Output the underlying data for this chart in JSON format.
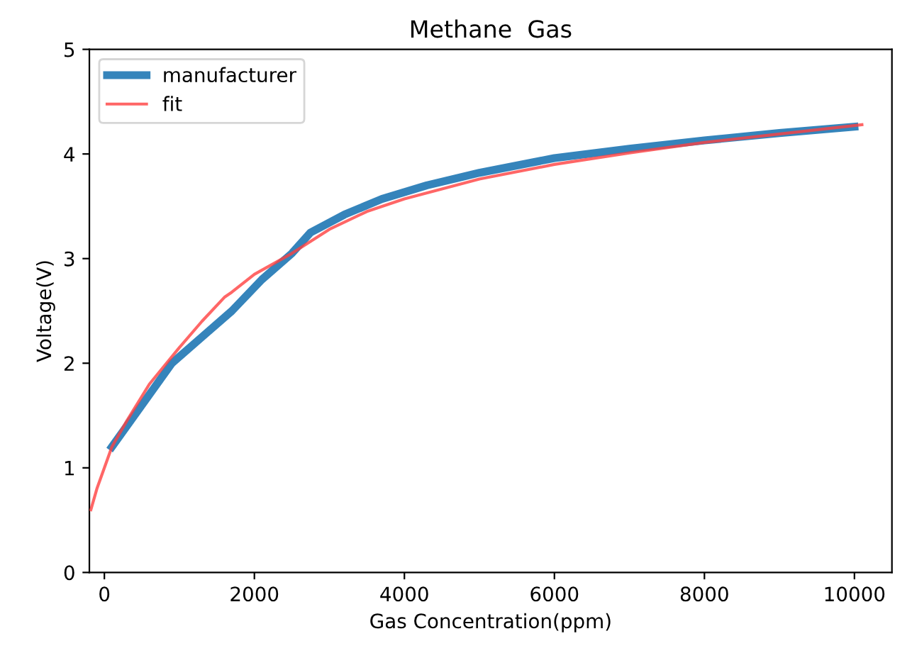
{
  "chart_data": {
    "type": "line",
    "title": "Methane  Gas",
    "xlabel": "Gas Concentration(ppm)",
    "ylabel": "Voltage(V)",
    "xlim": [
      -200,
      10500
    ],
    "ylim": [
      0,
      5
    ],
    "xticks": [
      0,
      2000,
      4000,
      6000,
      8000,
      10000
    ],
    "yticks": [
      0,
      1,
      2,
      3,
      4,
      5
    ],
    "grid": false,
    "legend": "top left",
    "line_style": "solid",
    "marker": "none",
    "series": [
      {
        "name": "manufacturer",
        "color": "#1f77b4",
        "x": [
          100,
          300,
          600,
          900,
          1300,
          1700,
          2100,
          2500,
          2750,
          3200,
          3700,
          4300,
          5000,
          6000,
          7000,
          8000,
          9000,
          10000
        ],
        "values": [
          1.2,
          1.4,
          1.7,
          2.0,
          2.25,
          2.5,
          2.8,
          3.05,
          3.25,
          3.42,
          3.57,
          3.7,
          3.82,
          3.96,
          4.05,
          4.13,
          4.2,
          4.26
        ]
      },
      {
        "name": "fit",
        "color": "#ff4040",
        "x": [
          -180,
          -100,
          0,
          100,
          300,
          600,
          1000,
          1300,
          1600,
          1700,
          2000,
          2500,
          3000,
          3500,
          4000,
          5000,
          6000,
          7000,
          8000,
          10100
        ],
        "values": [
          0.6,
          0.8,
          1.0,
          1.2,
          1.45,
          1.8,
          2.15,
          2.4,
          2.63,
          2.68,
          2.85,
          3.05,
          3.28,
          3.45,
          3.57,
          3.76,
          3.9,
          4.01,
          4.11,
          4.28
        ]
      }
    ]
  }
}
